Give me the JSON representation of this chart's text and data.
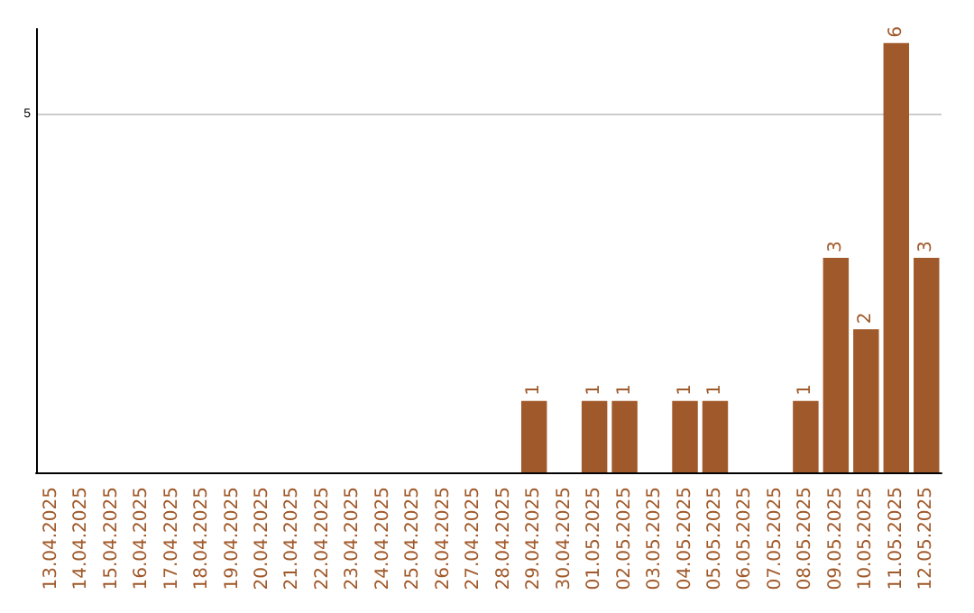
{
  "chart_data": {
    "type": "bar",
    "categories": [
      "13.04.2025",
      "14.04.2025",
      "15.04.2025",
      "16.04.2025",
      "17.04.2025",
      "18.04.2025",
      "19.04.2025",
      "20.04.2025",
      "21.04.2025",
      "22.04.2025",
      "23.04.2025",
      "24.04.2025",
      "25.04.2025",
      "26.04.2025",
      "27.04.2025",
      "28.04.2025",
      "29.04.2025",
      "30.04.2025",
      "01.05.2025",
      "02.05.2025",
      "03.05.2025",
      "04.05.2025",
      "05.05.2025",
      "06.05.2025",
      "07.05.2025",
      "08.05.2025",
      "09.05.2025",
      "10.05.2025",
      "11.05.2025",
      "12.05.2025"
    ],
    "values": [
      null,
      null,
      null,
      null,
      null,
      null,
      null,
      null,
      null,
      null,
      null,
      null,
      null,
      null,
      null,
      null,
      1,
      null,
      1,
      1,
      null,
      1,
      1,
      null,
      null,
      1,
      3,
      2,
      6,
      3
    ],
    "color": "#a0592a",
    "ylim": [
      0,
      6.2
    ],
    "yticks": [
      5
    ],
    "grid": "y",
    "data_labels": true
  }
}
